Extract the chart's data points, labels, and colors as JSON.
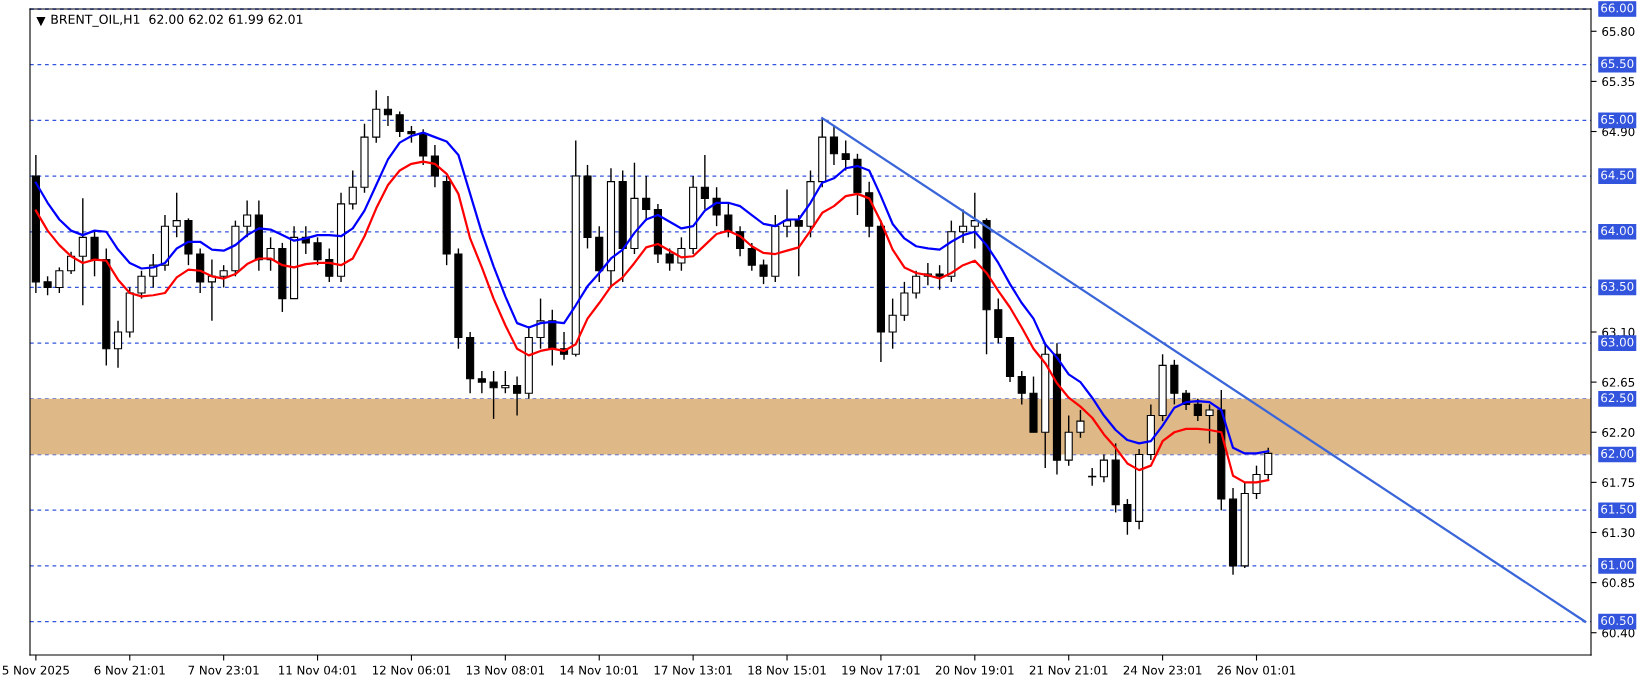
{
  "chart_data": {
    "type": "candlestick",
    "title": "BRENT_OIL,H1  62.00 62.02 61.99 62.01",
    "categories": [
      "5 Nov 2025",
      null,
      null,
      null,
      null,
      null,
      null,
      null,
      "6 Nov 21:01",
      null,
      null,
      null,
      null,
      null,
      null,
      null,
      "7 Nov 23:01",
      null,
      null,
      null,
      null,
      null,
      null,
      null,
      "11 Nov 04:01",
      null,
      null,
      null,
      null,
      null,
      null,
      null,
      "12 Nov 06:01",
      null,
      null,
      null,
      null,
      null,
      null,
      null,
      "13 Nov 08:01",
      null,
      null,
      null,
      null,
      null,
      null,
      null,
      "14 Nov 10:01",
      null,
      null,
      null,
      null,
      null,
      null,
      null,
      "17 Nov 13:01",
      null,
      null,
      null,
      null,
      null,
      null,
      null,
      "18 Nov 15:01",
      null,
      null,
      null,
      null,
      null,
      null,
      null,
      "19 Nov 17:01",
      null,
      null,
      null,
      null,
      null,
      null,
      null,
      "20 Nov 19:01",
      null,
      null,
      null,
      null,
      null,
      null,
      null,
      "21 Nov 21:01",
      null,
      null,
      null,
      null,
      null,
      null,
      null,
      "24 Nov 23:01",
      null,
      null,
      null,
      null,
      null,
      null,
      null,
      "26 Nov 01:01",
      null,
      null,
      null,
      null,
      null,
      null,
      null,
      null,
      null,
      null,
      null,
      null,
      null,
      null,
      null,
      null,
      null,
      null,
      null,
      null,
      null,
      null,
      null,
      null,
      null,
      null,
      null,
      null
    ],
    "ohlc": [
      [
        64.5,
        64.69,
        63.45,
        63.55
      ],
      [
        63.55,
        63.6,
        63.43,
        63.5
      ],
      [
        63.5,
        63.68,
        63.45,
        63.65
      ],
      [
        63.65,
        63.82,
        63.62,
        63.78
      ],
      [
        63.78,
        64.3,
        63.34,
        63.95
      ],
      [
        63.95,
        64.0,
        63.6,
        63.75
      ],
      [
        63.75,
        63.85,
        62.8,
        62.95
      ],
      [
        62.95,
        63.2,
        62.78,
        63.1
      ],
      [
        63.1,
        63.5,
        63.05,
        63.45
      ],
      [
        63.45,
        63.65,
        63.4,
        63.6
      ],
      [
        63.6,
        63.8,
        63.5,
        63.7
      ],
      [
        63.7,
        64.15,
        63.65,
        64.05
      ],
      [
        64.05,
        64.35,
        63.95,
        64.1
      ],
      [
        64.1,
        64.12,
        63.7,
        63.8
      ],
      [
        63.8,
        63.85,
        63.45,
        63.55
      ],
      [
        63.55,
        63.75,
        63.2,
        63.6
      ],
      [
        63.6,
        63.7,
        63.5,
        63.65
      ],
      [
        63.65,
        64.1,
        63.6,
        64.05
      ],
      [
        64.05,
        64.28,
        63.95,
        64.15
      ],
      [
        64.15,
        64.28,
        63.65,
        63.75
      ],
      [
        63.75,
        63.95,
        63.65,
        63.85
      ],
      [
        63.85,
        63.9,
        63.28,
        63.4
      ],
      [
        63.4,
        64.05,
        63.4,
        63.95
      ],
      [
        63.95,
        64.05,
        63.8,
        63.9
      ],
      [
        63.9,
        63.95,
        63.7,
        63.75
      ],
      [
        63.75,
        63.85,
        63.55,
        63.6
      ],
      [
        63.6,
        64.35,
        63.55,
        64.25
      ],
      [
        64.25,
        64.55,
        64.2,
        64.4
      ],
      [
        64.4,
        64.97,
        64.35,
        64.85
      ],
      [
        64.85,
        65.27,
        64.8,
        65.1
      ],
      [
        65.1,
        65.22,
        64.95,
        65.05
      ],
      [
        65.05,
        65.08,
        64.85,
        64.9
      ],
      [
        64.9,
        64.95,
        64.8,
        64.88
      ],
      [
        64.88,
        64.92,
        64.6,
        64.68
      ],
      [
        64.68,
        64.78,
        64.4,
        64.5
      ],
      [
        64.45,
        64.5,
        63.7,
        63.8
      ],
      [
        63.8,
        63.85,
        62.95,
        63.05
      ],
      [
        63.05,
        63.1,
        62.55,
        62.68
      ],
      [
        62.68,
        62.75,
        62.55,
        62.65
      ],
      [
        62.65,
        62.75,
        62.32,
        62.6
      ],
      [
        62.6,
        62.75,
        62.55,
        62.62
      ],
      [
        62.62,
        62.7,
        62.35,
        62.55
      ],
      [
        62.55,
        63.15,
        62.5,
        63.05
      ],
      [
        63.05,
        63.4,
        62.95,
        63.2
      ],
      [
        63.2,
        63.3,
        62.8,
        62.95
      ],
      [
        62.95,
        63.1,
        62.85,
        62.9
      ],
      [
        62.9,
        64.82,
        62.88,
        64.5
      ],
      [
        64.5,
        64.6,
        63.85,
        63.95
      ],
      [
        63.95,
        64.05,
        63.55,
        63.65
      ],
      [
        63.65,
        64.57,
        63.5,
        64.45
      ],
      [
        64.45,
        64.55,
        63.55,
        63.85
      ],
      [
        63.85,
        64.62,
        63.8,
        64.3
      ],
      [
        64.3,
        64.5,
        64.1,
        64.2
      ],
      [
        64.2,
        64.25,
        63.72,
        63.8
      ],
      [
        63.8,
        63.85,
        63.65,
        63.72
      ],
      [
        63.72,
        63.95,
        63.65,
        63.85
      ],
      [
        63.85,
        64.5,
        63.8,
        64.4
      ],
      [
        64.4,
        64.69,
        64.2,
        64.3
      ],
      [
        64.3,
        64.4,
        64.05,
        64.15
      ],
      [
        64.15,
        64.25,
        63.95,
        64.0
      ],
      [
        64.0,
        64.05,
        63.78,
        63.85
      ],
      [
        63.85,
        63.9,
        63.65,
        63.7
      ],
      [
        63.7,
        63.75,
        63.53,
        63.6
      ],
      [
        63.6,
        64.15,
        63.55,
        64.05
      ],
      [
        64.05,
        64.38,
        63.95,
        64.1
      ],
      [
        64.1,
        64.15,
        63.6,
        64.05
      ],
      [
        64.05,
        64.55,
        63.95,
        64.45
      ],
      [
        64.45,
        65.02,
        64.4,
        64.85
      ],
      [
        64.85,
        64.95,
        64.6,
        64.7
      ],
      [
        64.7,
        64.82,
        64.55,
        64.65
      ],
      [
        64.65,
        64.7,
        64.15,
        64.35
      ],
      [
        64.35,
        64.45,
        63.95,
        64.05
      ],
      [
        64.05,
        64.1,
        62.83,
        63.1
      ],
      [
        63.1,
        63.4,
        62.95,
        63.25
      ],
      [
        63.25,
        63.55,
        63.2,
        63.45
      ],
      [
        63.45,
        63.65,
        63.4,
        63.6
      ],
      [
        63.6,
        63.72,
        63.52,
        63.62
      ],
      [
        63.62,
        63.7,
        63.48,
        63.6
      ],
      [
        63.6,
        64.1,
        63.55,
        64.0
      ],
      [
        64.0,
        64.2,
        63.9,
        64.05
      ],
      [
        64.05,
        64.35,
        63.85,
        64.1
      ],
      [
        64.1,
        64.12,
        62.9,
        63.3
      ],
      [
        63.3,
        63.4,
        63.0,
        63.05
      ],
      [
        63.05,
        63.05,
        62.65,
        62.7
      ],
      [
        62.7,
        62.75,
        62.45,
        62.55
      ],
      [
        62.55,
        62.7,
        62.2,
        62.2
      ],
      [
        62.2,
        63.0,
        61.88,
        62.9
      ],
      [
        62.9,
        63.0,
        61.82,
        61.95
      ],
      [
        61.95,
        62.35,
        61.9,
        62.2
      ],
      [
        62.2,
        62.4,
        62.15,
        62.3
      ],
      [
        61.8,
        61.88,
        61.72,
        61.8
      ],
      [
        61.8,
        62.0,
        61.75,
        61.95
      ],
      [
        61.95,
        62.1,
        61.48,
        61.55
      ],
      [
        61.55,
        61.6,
        61.28,
        61.4
      ],
      [
        61.4,
        62.05,
        61.33,
        62.0
      ],
      [
        62.0,
        62.45,
        61.95,
        62.35
      ],
      [
        62.35,
        62.9,
        62.3,
        62.8
      ],
      [
        62.8,
        62.85,
        62.45,
        62.55
      ],
      [
        62.55,
        62.58,
        62.4,
        62.45
      ],
      [
        62.45,
        62.5,
        62.3,
        62.35
      ],
      [
        62.35,
        62.45,
        62.1,
        62.4
      ],
      [
        62.4,
        62.58,
        61.5,
        61.6
      ],
      [
        61.6,
        61.7,
        60.92,
        61.0
      ],
      [
        61.0,
        61.75,
        60.98,
        61.65
      ],
      [
        61.65,
        61.9,
        61.6,
        61.82
      ],
      [
        61.82,
        62.06,
        61.78,
        62.01
      ],
      null,
      null,
      null,
      null,
      null,
      null,
      null,
      null,
      null,
      null,
      null,
      null,
      null,
      null,
      null,
      null,
      null,
      null,
      null,
      null,
      null,
      null,
      null,
      null,
      null,
      null,
      null
    ],
    "series": [
      {
        "type": "line",
        "color": "#0000ff",
        "values": [
          64.44,
          64.26,
          64.11,
          64.01,
          63.97,
          64.01,
          64.0,
          63.84,
          63.72,
          63.67,
          63.68,
          63.72,
          63.85,
          63.91,
          63.91,
          63.84,
          63.83,
          63.88,
          63.97,
          64.03,
          64.02,
          63.97,
          63.92,
          63.94,
          63.97,
          63.97,
          63.96,
          64.03,
          64.19,
          64.42,
          64.65,
          64.8,
          64.86,
          64.89,
          64.85,
          64.81,
          64.69,
          64.34,
          63.99,
          63.69,
          63.42,
          63.18,
          63.14,
          63.18,
          63.19,
          63.18,
          63.34,
          63.51,
          63.63,
          63.76,
          63.84,
          63.99,
          64.11,
          64.15,
          64.09,
          64.03,
          64.05,
          64.19,
          64.26,
          64.26,
          64.23,
          64.15,
          64.07,
          64.05,
          64.11,
          64.11,
          64.26,
          64.44,
          64.48,
          64.57,
          64.59,
          64.55,
          64.32,
          64.07,
          63.94,
          63.87,
          63.85,
          63.84,
          63.91,
          63.97,
          64.0,
          63.88,
          63.72,
          63.53,
          63.36,
          63.22,
          62.99,
          62.87,
          62.72,
          62.65,
          62.51,
          62.35,
          62.22,
          62.13,
          62.1,
          62.12,
          62.26,
          62.42,
          62.47,
          62.48,
          62.47,
          62.4,
          62.06,
          62.01,
          62.01,
          62.03,
          null,
          null,
          null,
          null,
          null,
          null,
          null,
          null,
          null,
          null,
          null,
          null,
          null,
          null,
          null,
          null,
          null,
          null,
          null,
          null,
          null,
          null,
          null,
          null,
          null,
          null,
          null
        ]
      },
      {
        "type": "line",
        "color": "#ff0000",
        "values": [
          64.19,
          64.01,
          63.88,
          63.78,
          63.72,
          63.75,
          63.74,
          63.57,
          63.45,
          63.42,
          63.43,
          63.45,
          63.59,
          63.66,
          63.65,
          63.6,
          63.58,
          63.62,
          63.71,
          63.76,
          63.76,
          63.7,
          63.68,
          63.71,
          63.72,
          63.72,
          63.7,
          63.76,
          63.96,
          64.21,
          64.42,
          64.55,
          64.61,
          64.63,
          64.61,
          64.52,
          64.34,
          63.94,
          63.68,
          63.4,
          63.16,
          62.95,
          62.89,
          62.93,
          62.95,
          62.93,
          62.99,
          63.22,
          63.36,
          63.51,
          63.59,
          63.72,
          63.86,
          63.89,
          63.83,
          63.77,
          63.78,
          63.88,
          63.98,
          64.01,
          63.96,
          63.87,
          63.81,
          63.8,
          63.83,
          63.86,
          64.01,
          64.17,
          64.23,
          64.32,
          64.34,
          64.3,
          64.09,
          63.84,
          63.68,
          63.63,
          63.61,
          63.58,
          63.63,
          63.7,
          63.74,
          63.63,
          63.47,
          63.32,
          63.14,
          62.95,
          62.82,
          62.64,
          62.51,
          62.43,
          62.33,
          62.18,
          62.06,
          61.92,
          61.86,
          61.9,
          62.12,
          62.2,
          62.23,
          62.23,
          62.22,
          62.2,
          61.81,
          61.75,
          61.75,
          61.77,
          null,
          null,
          null,
          null,
          null,
          null,
          null,
          null,
          null,
          null,
          null,
          null,
          null,
          null,
          null,
          null,
          null,
          null,
          null,
          null,
          null,
          null,
          null,
          null,
          null,
          null,
          null
        ]
      },
      {
        "type": "line",
        "color": "#3a66d9",
        "values": [
          null,
          null,
          null,
          null,
          null,
          null,
          null,
          null,
          null,
          null,
          null,
          null,
          null,
          null,
          null,
          null,
          null,
          null,
          null,
          null,
          null,
          null,
          null,
          null,
          null,
          null,
          null,
          null,
          null,
          null,
          null,
          null,
          null,
          null,
          null,
          null,
          null,
          null,
          null,
          null,
          null,
          null,
          null,
          null,
          null,
          null,
          null,
          null,
          null,
          null,
          null,
          null,
          null,
          null,
          null,
          null,
          null,
          null,
          null,
          null,
          null,
          null,
          null,
          null,
          null,
          null,
          null,
          65.02,
          null,
          null,
          null,
          null,
          null,
          null,
          null,
          null,
          null,
          null,
          null,
          null,
          null,
          null,
          null,
          null,
          null,
          null,
          null,
          null,
          null,
          null,
          null,
          null,
          null,
          null,
          null,
          null,
          null,
          null,
          null,
          null,
          null,
          null,
          null,
          null,
          null,
          null,
          null,
          null,
          null,
          null,
          null,
          null,
          null,
          null,
          null,
          null,
          null,
          null,
          null,
          null,
          null,
          null,
          null,
          null,
          null,
          null,
          null,
          null,
          null,
          null,
          null,
          null,
          60.5
        ]
      }
    ],
    "ylim": [
      60.2,
      66.0
    ],
    "yticks": [
      {
        "value": 60.4,
        "label": "60.40"
      },
      60.85,
      {
        "value": 61.3,
        "label": "61.30"
      },
      61.75,
      {
        "value": 62.2,
        "label": "62.20"
      },
      62.65,
      {
        "value": 63.1,
        "label": "63.10"
      },
      {
        "value": 64.9,
        "label": "64.90"
      },
      65.35,
      {
        "value": 65.8,
        "label": "65.80"
      }
    ],
    "bands": [
      {
        "axis": "y",
        "from": 62.0,
        "to": 62.5,
        "color": "#deb887"
      }
    ],
    "ref_lines": [
      {
        "axis": "y",
        "value": 66.0,
        "label": "66.00",
        "color": "#3355dd",
        "line_style": "dashed"
      },
      {
        "axis": "y",
        "value": 65.5,
        "label": "65.50",
        "color": "#3355dd",
        "line_style": "dashed"
      },
      {
        "axis": "y",
        "value": 65.0,
        "label": "65.00",
        "color": "#3355dd",
        "line_style": "dashed"
      },
      {
        "axis": "y",
        "value": 64.5,
        "label": "64.50",
        "color": "#3355dd",
        "line_style": "dashed"
      },
      {
        "axis": "y",
        "value": 64.0,
        "label": "64.00",
        "color": "#3355dd",
        "line_style": "dashed"
      },
      {
        "axis": "y",
        "value": 63.5,
        "label": "63.50",
        "color": "#3355dd",
        "line_style": "dashed"
      },
      {
        "axis": "y",
        "value": 63.0,
        "label": "63.00",
        "color": "#3355dd",
        "line_style": "dashed"
      },
      {
        "axis": "y",
        "value": 62.5,
        "label": "62.50",
        "color": "#3355dd",
        "line_style": "dashed"
      },
      {
        "axis": "y",
        "value": 62.0,
        "label": "62.00",
        "color": "#3355dd",
        "line_style": "dashed"
      },
      {
        "axis": "y",
        "value": 61.5,
        "label": "61.50",
        "color": "#3355dd",
        "line_style": "dashed"
      },
      {
        "axis": "y",
        "value": 61.0,
        "label": "61.00",
        "color": "#3355dd",
        "line_style": "dashed"
      },
      {
        "axis": "y",
        "value": 60.5,
        "label": "60.50",
        "color": "#3355dd",
        "line_style": "dashed"
      }
    ],
    "grid": false,
    "legend": false
  }
}
